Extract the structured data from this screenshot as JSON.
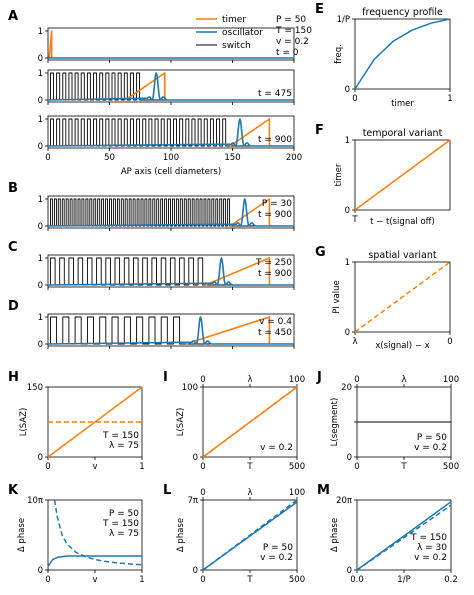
{
  "colors": {
    "timer": "#ff7f0e",
    "oscillator": "#1f77b4",
    "switch": "#000000"
  },
  "legend": [
    "timer",
    "oscillator",
    "switch"
  ],
  "chart_data": [
    {
      "id": "A",
      "type": "line",
      "params": [
        "P = 50",
        "T = 150",
        "v = 0.2",
        "t = 0"
      ],
      "notes": [
        "t = 475",
        "t = 900"
      ],
      "xlabel": "AP axis (cell diameters)",
      "xlim": [
        0,
        200
      ],
      "ylim": [
        0,
        1
      ],
      "x_ticks": [
        "0",
        "50",
        "100",
        "150",
        "200"
      ],
      "y_ticks": [
        "0",
        "1"
      ],
      "rows": [
        {
          "time": 0,
          "timer_ramp": [
            1,
            3
          ],
          "osc_center": null,
          "switch": {
            "start": 1,
            "end": 3,
            "period": 5
          }
        },
        {
          "time": 475,
          "timer_ramp": [
            63,
            95
          ],
          "osc_center": 88,
          "switch": {
            "start": 2,
            "end": 79,
            "period": 5
          }
        },
        {
          "time": 900,
          "timer_ramp": [
            148,
            180
          ],
          "osc_center": 156,
          "switch": {
            "start": 2,
            "end": 148,
            "period": 5
          }
        }
      ]
    },
    {
      "id": "B",
      "type": "line",
      "params": [
        "P = 30",
        "t = 900"
      ],
      "xlim": [
        0,
        200
      ],
      "ylim": [
        0,
        1
      ],
      "y_ticks": [
        "0",
        "1"
      ],
      "timer_ramp": [
        148,
        180
      ],
      "osc_center": 160,
      "switch": {
        "start": 2,
        "end": 150,
        "period": 3.2
      }
    },
    {
      "id": "C",
      "type": "line",
      "params": [
        "T = 250",
        "t = 900"
      ],
      "xlim": [
        0,
        200
      ],
      "ylim": [
        0,
        1
      ],
      "y_ticks": [
        "0",
        "1"
      ],
      "timer_ramp": [
        128,
        180
      ],
      "osc_center": 141,
      "switch": {
        "start": 2,
        "end": 127,
        "period": 7.5
      }
    },
    {
      "id": "D",
      "type": "line",
      "params": [
        "v = 0.4",
        "t = 450"
      ],
      "xlim": [
        0,
        200
      ],
      "ylim": [
        0,
        1
      ],
      "y_ticks": [
        "0",
        "1"
      ],
      "timer_ramp": [
        112,
        180
      ],
      "osc_center": 124,
      "switch": {
        "start": 2,
        "end": 112,
        "period": 10
      }
    },
    {
      "id": "E",
      "type": "line",
      "title": "frequency profile",
      "xlabel": "timer",
      "ylabel": "freq.",
      "x_ticks": [
        "0",
        "1"
      ],
      "y_ticks": [
        "0",
        "1/P"
      ],
      "xlim": [
        0,
        1
      ],
      "ylim": [
        0,
        1
      ],
      "series": [
        {
          "color": "oscillator",
          "x": [
            0,
            0.2,
            0.4,
            0.6,
            0.8,
            1.0
          ],
          "y": [
            0,
            0.42,
            0.68,
            0.84,
            0.94,
            1.0
          ]
        }
      ]
    },
    {
      "id": "F",
      "type": "line",
      "title": "temporal variant",
      "xlabel": "t − t(signal off)",
      "ylabel": "timer",
      "x_ticks": [
        "T"
      ],
      "y_ticks": [
        "0",
        "1"
      ],
      "xlim": [
        0,
        1
      ],
      "ylim": [
        0,
        1
      ],
      "series": [
        {
          "color": "timer",
          "x": [
            0,
            1
          ],
          "y": [
            0,
            1
          ]
        }
      ]
    },
    {
      "id": "G",
      "type": "line",
      "title": "spatial variant",
      "xlabel": "x(signal) − x",
      "ylabel": "PI value",
      "x_ticks": [
        "λ",
        "0"
      ],
      "y_ticks": [
        "0",
        "1"
      ],
      "xlim": [
        0,
        1
      ],
      "ylim": [
        0,
        1
      ],
      "series": [
        {
          "color": "timer",
          "dash": true,
          "x": [
            0,
            1
          ],
          "y": [
            0,
            1
          ]
        }
      ]
    },
    {
      "id": "H",
      "type": "line",
      "ylabel": "L(SAZ)",
      "xlabel": "v",
      "params": [
        "T = 150",
        "λ = 75"
      ],
      "x_ticks": [
        "0",
        "1"
      ],
      "y_ticks": [
        "0",
        "150"
      ],
      "xlim": [
        0,
        1
      ],
      "ylim": [
        0,
        150
      ],
      "series": [
        {
          "color": "timer",
          "x": [
            0,
            1
          ],
          "y": [
            0,
            150
          ]
        },
        {
          "color": "timer",
          "dash": true,
          "x": [
            0,
            1
          ],
          "y": [
            75,
            75
          ]
        }
      ]
    },
    {
      "id": "I",
      "type": "line",
      "ylabel": "L(SAZ)",
      "xlabel": "T",
      "top_xlabel": "λ",
      "params": [
        "v = 0.2"
      ],
      "x_ticks": [
        "0",
        "500"
      ],
      "top_ticks": [
        "0",
        "100"
      ],
      "y_ticks": [
        "0",
        "100"
      ],
      "xlim": [
        0,
        500
      ],
      "ylim": [
        0,
        100
      ],
      "series": [
        {
          "color": "timer",
          "x": [
            0,
            500
          ],
          "y": [
            0,
            100
          ]
        },
        {
          "color": "timer",
          "dash": true,
          "x": [
            0,
            500
          ],
          "y": [
            0,
            100
          ]
        }
      ]
    },
    {
      "id": "J",
      "type": "line",
      "ylabel": "L(segment)",
      "xlabel": "T",
      "top_xlabel": "λ",
      "params": [
        "P = 50",
        "v = 0.2"
      ],
      "x_ticks": [
        "0",
        "500"
      ],
      "top_ticks": [
        "0",
        "100"
      ],
      "y_ticks": [
        "0",
        "20"
      ],
      "xlim": [
        0,
        500
      ],
      "ylim": [
        0,
        20
      ],
      "series": [
        {
          "color": "switch",
          "x": [
            0,
            500
          ],
          "y": [
            10,
            10
          ]
        },
        {
          "color": "switch",
          "dash": true,
          "x": [
            0,
            500
          ],
          "y": [
            10,
            10
          ]
        }
      ]
    },
    {
      "id": "K",
      "type": "line",
      "ylabel": "Δ phase",
      "xlabel": "v",
      "params": [
        "P = 50",
        "T = 150",
        "λ = 75"
      ],
      "x_ticks": [
        "0",
        "1"
      ],
      "y_ticks": [
        "0",
        "10π"
      ],
      "xlim": [
        0,
        1
      ],
      "ylim": [
        0,
        10
      ],
      "series": [
        {
          "color": "oscillator",
          "x": [
            0,
            0.05,
            0.1,
            0.2,
            0.4,
            0.6,
            0.8,
            1.0
          ],
          "y": [
            0.5,
            1.5,
            1.8,
            2.0,
            2.0,
            2.0,
            2.0,
            2.0
          ]
        },
        {
          "color": "oscillator",
          "dash": true,
          "x": [
            0.07,
            0.1,
            0.15,
            0.2,
            0.3,
            0.4,
            0.5,
            0.6,
            0.7,
            0.8,
            0.9,
            1.0
          ],
          "y": [
            10,
            7.5,
            5,
            3.75,
            2.5,
            1.9,
            1.5,
            1.25,
            1.07,
            0.94,
            0.83,
            0.75
          ]
        }
      ]
    },
    {
      "id": "L",
      "type": "line",
      "ylabel": "Δ phase",
      "xlabel": "T",
      "top_xlabel": "λ",
      "params": [
        "P = 50",
        "v = 0.2"
      ],
      "x_ticks": [
        "0",
        "500"
      ],
      "top_ticks": [
        "0",
        "100"
      ],
      "y_ticks": [
        "0",
        "7π"
      ],
      "xlim": [
        0,
        500
      ],
      "ylim": [
        0,
        7
      ],
      "series": [
        {
          "color": "oscillator",
          "x": [
            0,
            500
          ],
          "y": [
            0,
            6.8
          ]
        },
        {
          "color": "oscillator",
          "dash": true,
          "x": [
            0,
            500
          ],
          "y": [
            0,
            7
          ]
        }
      ]
    },
    {
      "id": "M",
      "type": "line",
      "ylabel": "Δ phase",
      "xlabel": "1/P",
      "params": [
        "T = 150",
        "λ = 30",
        "v = 0.2"
      ],
      "x_ticks": [
        "0.0",
        "0.2"
      ],
      "y_ticks": [
        "0",
        "20π"
      ],
      "xlim": [
        0,
        0.2
      ],
      "ylim": [
        0,
        20
      ],
      "series": [
        {
          "color": "oscillator",
          "x": [
            0,
            0.2
          ],
          "y": [
            0,
            19.5
          ]
        },
        {
          "color": "oscillator",
          "dash": true,
          "x": [
            0,
            0.2
          ],
          "y": [
            0,
            18.5
          ]
        }
      ]
    }
  ]
}
